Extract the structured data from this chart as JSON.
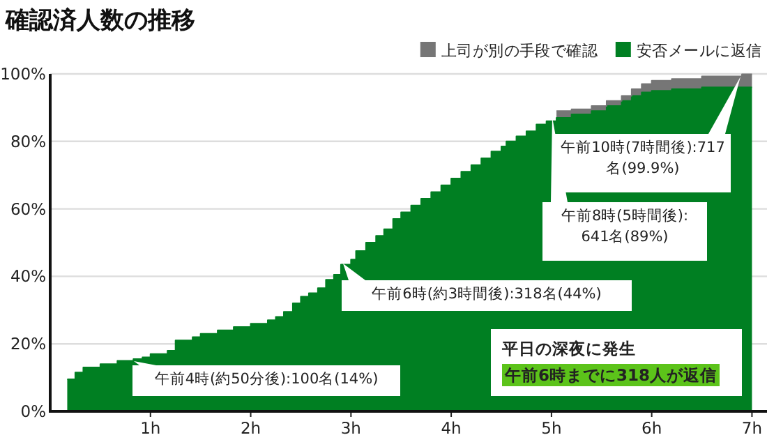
{
  "chart_data": {
    "type": "area",
    "stacked": true,
    "title": "確認済人数の推移",
    "x": [
      0.17,
      0.25,
      0.25,
      0.33,
      0.33,
      0.5,
      0.5,
      0.67,
      0.67,
      0.83,
      0.83,
      0.92,
      0.92,
      1.0,
      1.0,
      1.17,
      1.17,
      1.25,
      1.25,
      1.42,
      1.42,
      1.5,
      1.5,
      1.67,
      1.67,
      1.83,
      1.83,
      2.0,
      2.0,
      2.17,
      2.17,
      2.25,
      2.25,
      2.33,
      2.33,
      2.42,
      2.42,
      2.5,
      2.5,
      2.58,
      2.58,
      2.67,
      2.67,
      2.75,
      2.75,
      2.83,
      2.83,
      2.9,
      2.9,
      3.0,
      3.0,
      3.05,
      3.05,
      3.15,
      3.15,
      3.25,
      3.25,
      3.33,
      3.33,
      3.42,
      3.42,
      3.5,
      3.5,
      3.6,
      3.6,
      3.7,
      3.7,
      3.8,
      3.8,
      3.9,
      3.9,
      4.0,
      4.0,
      4.1,
      4.1,
      4.2,
      4.2,
      4.3,
      4.3,
      4.4,
      4.4,
      4.5,
      4.5,
      4.55,
      4.55,
      4.65,
      4.65,
      4.75,
      4.75,
      4.85,
      4.85,
      4.95,
      4.95,
      5.05,
      5.05,
      5.2,
      5.2,
      5.4,
      5.4,
      5.55,
      5.55,
      5.7,
      5.7,
      5.8,
      5.8,
      5.9,
      5.9,
      6.0,
      6.0,
      6.2,
      6.2,
      6.5,
      6.5,
      6.9,
      6.9,
      7.0
    ],
    "series": [
      {
        "name": "安否メールに返信",
        "color": "#007f22",
        "values": [
          9.5,
          9.5,
          11.5,
          11.5,
          13,
          13,
          14,
          14,
          15,
          15,
          15.5,
          15.5,
          16,
          16,
          17,
          17,
          18,
          18,
          21,
          21,
          22,
          22,
          23,
          23,
          24,
          24,
          25,
          25,
          26,
          26,
          27,
          27,
          28,
          28,
          29.5,
          29.5,
          32,
          32,
          34,
          34,
          35,
          35,
          36.5,
          36.5,
          39,
          39,
          40.5,
          40.5,
          43.5,
          43.5,
          45,
          45,
          47.5,
          47.5,
          50,
          50,
          52,
          52,
          54,
          54,
          57,
          57,
          59,
          59,
          61,
          61,
          63,
          63,
          65,
          65,
          67,
          67,
          69,
          69,
          71,
          71,
          73,
          73,
          75,
          75,
          77,
          77,
          78.5,
          78.5,
          80,
          80,
          81.5,
          81.5,
          83,
          83,
          85,
          85,
          86,
          86,
          87,
          87,
          88,
          88,
          89,
          89,
          90.5,
          90.5,
          92,
          92,
          93.5,
          93.5,
          94.5,
          94.5,
          95,
          95,
          95.5,
          95.5,
          96,
          96,
          96,
          96
        ]
      },
      {
        "name": "上司が別の手段で確認",
        "color": "#767676",
        "values": [
          null,
          null,
          null,
          null,
          null,
          null,
          null,
          null,
          null,
          null,
          null,
          null,
          null,
          null,
          null,
          null,
          null,
          null,
          null,
          null,
          null,
          null,
          null,
          null,
          null,
          null,
          null,
          null,
          null,
          null,
          null,
          null,
          null,
          null,
          null,
          null,
          null,
          null,
          null,
          null,
          null,
          null,
          null,
          null,
          null,
          null,
          null,
          null,
          null,
          null,
          null,
          null,
          null,
          null,
          null,
          null,
          null,
          null,
          null,
          null,
          null,
          null,
          null,
          null,
          null,
          null,
          null,
          null,
          null,
          null,
          null,
          null,
          null,
          null,
          null,
          null,
          null,
          null,
          null,
          null,
          null,
          null,
          null,
          null,
          null,
          null,
          null,
          null,
          null,
          null,
          null,
          null,
          null,
          null,
          2,
          2,
          1.5,
          1.5,
          1.5,
          1.5,
          1.5,
          1.5,
          1.5,
          1.5,
          2,
          2,
          2.5,
          2.5,
          3,
          3,
          3,
          3,
          3.3,
          3.3,
          3.9,
          3.9
        ]
      }
    ],
    "xlim": [
      0,
      7.15
    ],
    "ylim": [
      0,
      100
    ],
    "xticks": [
      {
        "value": 1,
        "label": "1h"
      },
      {
        "value": 2,
        "label": "2h"
      },
      {
        "value": 3,
        "label": "3h"
      },
      {
        "value": 4,
        "label": "4h"
      },
      {
        "value": 5,
        "label": "5h"
      },
      {
        "value": 6,
        "label": "6h"
      },
      {
        "value": 7,
        "label": "7h"
      }
    ],
    "yticks": [
      {
        "value": 0,
        "label": "0%"
      },
      {
        "value": 20,
        "label": "20%"
      },
      {
        "value": 40,
        "label": "40%"
      },
      {
        "value": 60,
        "label": "60%"
      },
      {
        "value": 80,
        "label": "80%"
      },
      {
        "value": 100,
        "label": "100%"
      }
    ],
    "grid": "y",
    "legend": "top right",
    "annotations": [
      "午前4時(約50分後):100名(14%)",
      "午前6時(約3時間後):318名(44%)",
      "午前8時(5時間後):641名(89%)",
      "午前10時(7時間後):717名(99.9%)",
      "平日の深夜に発生",
      "午前6時までに318人が返信"
    ]
  }
}
